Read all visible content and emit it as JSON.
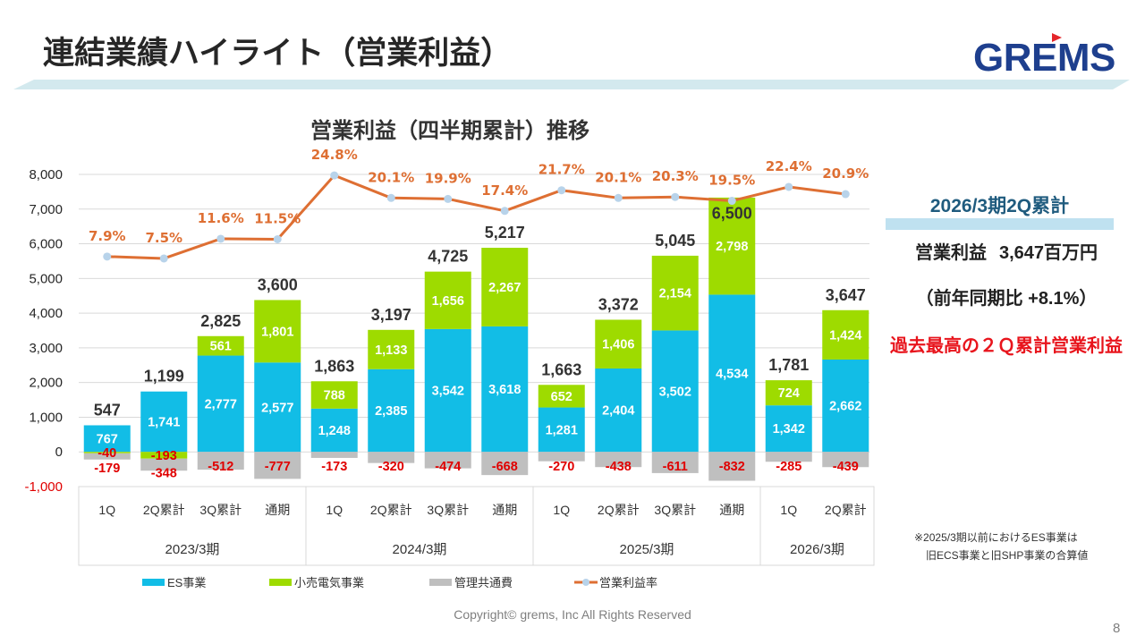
{
  "header": {
    "title": "連結業績ハイライト（営業利益）",
    "logo_text": "GREMS",
    "logo_color": "#1e3f8e",
    "logo_accent_color": "#e4262a"
  },
  "chart_data": {
    "type": "bar",
    "stacked": true,
    "title": "営業利益（四半期累計）推移",
    "xlabel": "",
    "ylabel": "",
    "ylim": [
      -1000,
      8000
    ],
    "yticks": [
      -1000,
      0,
      1000,
      2000,
      3000,
      4000,
      5000,
      6000,
      7000,
      8000
    ],
    "y2lim": [
      -40,
      25
    ],
    "grid": true,
    "legend_position": "bottom",
    "negative_label_color": "#e00000",
    "groups": [
      {
        "label": "2023/3期",
        "categories": [
          "1Q",
          "2Q累計",
          "3Q累計",
          "通期"
        ]
      },
      {
        "label": "2024/3期",
        "categories": [
          "1Q",
          "2Q累計",
          "3Q累計",
          "通期"
        ]
      },
      {
        "label": "2025/3期",
        "categories": [
          "1Q",
          "2Q累計",
          "3Q累計",
          "通期"
        ]
      },
      {
        "label": "2026/3期",
        "categories": [
          "1Q",
          "2Q累計"
        ]
      }
    ],
    "series": [
      {
        "key": "es",
        "name": "ES事業",
        "type": "bar",
        "color": "#12bde6",
        "values": [
          767,
          1741,
          2777,
          2577,
          1248,
          2385,
          3542,
          3618,
          1281,
          2404,
          3502,
          4534,
          1342,
          2662
        ]
      },
      {
        "key": "retail-electricity",
        "name": "小売電気事業",
        "type": "bar",
        "color": "#9edb00",
        "values": [
          -40,
          -193,
          561,
          1801,
          788,
          1133,
          1656,
          2267,
          652,
          1406,
          2154,
          2798,
          724,
          1424
        ]
      },
      {
        "key": "admin-common",
        "name": "管理共通費",
        "type": "bar",
        "color": "#bfbfbf",
        "values": [
          -179,
          -348,
          -512,
          -777,
          -173,
          -320,
          -474,
          -668,
          -270,
          -438,
          -611,
          -832,
          -285,
          -439
        ]
      },
      {
        "key": "operating-margin",
        "name": "営業利益率",
        "type": "line",
        "axis": "secondary",
        "unit": "%",
        "color": "#de6f33",
        "marker_color": "#b8d3ea",
        "values": [
          7.9,
          7.5,
          11.6,
          11.5,
          24.8,
          20.1,
          19.9,
          17.4,
          21.7,
          20.1,
          20.3,
          19.5,
          22.4,
          20.9
        ]
      }
    ],
    "totals": [
      547,
      1199,
      2825,
      3600,
      1863,
      3197,
      4725,
      5217,
      1663,
      3372,
      5045,
      6500,
      1781,
      3647
    ]
  },
  "summary": {
    "period": "2026/3期2Q累計",
    "profit_label": "営業利益",
    "profit_value": "3,647百万円",
    "yoy": "（前年同期比 +8.1%）",
    "highlight": "過去最高の２Ｑ累計営業利益",
    "period_color": "#1f5b7e",
    "highlight_color": "#e8141c"
  },
  "footnote": {
    "line1": "※2025/3期以前におけるES事業は",
    "line2": "旧ECS事業と旧SHP事業の合算値"
  },
  "footer": {
    "copyright": "Copyright© grems, Inc All Rights Reserved",
    "page_number": "8"
  }
}
